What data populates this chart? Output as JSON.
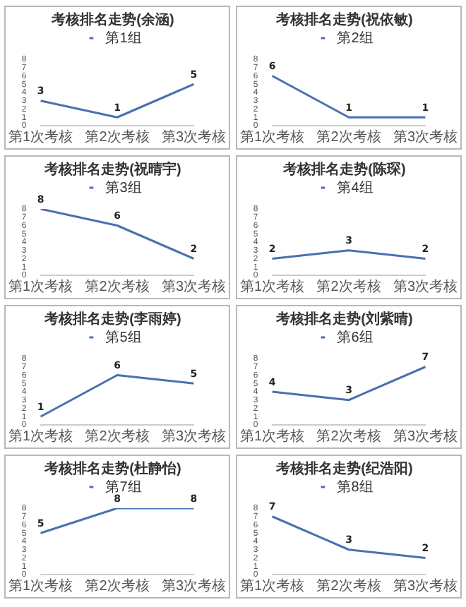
{
  "chart_data": [
    {
      "type": "line",
      "title": "考核排名走势(余涵)",
      "categories": [
        "第1次考核",
        "第2次考核",
        "第3次考核"
      ],
      "series": [
        {
          "name": "第1组",
          "color": "#4a70b0",
          "values": [
            3,
            1,
            5
          ]
        }
      ],
      "ylim": [
        0,
        8
      ],
      "yticks": [
        0,
        1,
        2,
        3,
        4,
        5,
        6,
        7,
        8
      ],
      "data_labels": true,
      "legend": "top",
      "grid": false,
      "marker": "none"
    },
    {
      "type": "line",
      "title": "考核排名走势(祝依敏)",
      "categories": [
        "第1次考核",
        "第2次考核",
        "第3次考核"
      ],
      "series": [
        {
          "name": "第2组",
          "color": "#4a70b0",
          "values": [
            6,
            1,
            1
          ]
        }
      ],
      "ylim": [
        0,
        8
      ],
      "yticks": [
        0,
        1,
        2,
        3,
        4,
        5,
        6,
        7,
        8
      ],
      "data_labels": true,
      "legend": "top",
      "grid": false,
      "marker": "none"
    },
    {
      "type": "line",
      "title": "考核排名走势(祝晴宇)",
      "categories": [
        "第1次考核",
        "第2次考核",
        "第3次考核"
      ],
      "series": [
        {
          "name": "第3组",
          "color": "#4a70b0",
          "values": [
            8,
            6,
            2
          ]
        }
      ],
      "ylim": [
        0,
        8
      ],
      "yticks": [
        0,
        1,
        2,
        3,
        4,
        5,
        6,
        7,
        8
      ],
      "data_labels": true,
      "legend": "top",
      "grid": false,
      "marker": "none"
    },
    {
      "type": "line",
      "title": "考核排名走势(陈琛)",
      "categories": [
        "第1次考核",
        "第2次考核",
        "第3次考核"
      ],
      "series": [
        {
          "name": "第4组",
          "color": "#4a70b0",
          "values": [
            2,
            3,
            2
          ]
        }
      ],
      "ylim": [
        0,
        8
      ],
      "yticks": [
        0,
        1,
        2,
        3,
        4,
        5,
        6,
        7,
        8
      ],
      "data_labels": true,
      "legend": "top",
      "grid": false,
      "marker": "none"
    },
    {
      "type": "line",
      "title": "考核排名走势(李雨婷)",
      "categories": [
        "第1次考核",
        "第2次考核",
        "第3次考核"
      ],
      "series": [
        {
          "name": "第5组",
          "color": "#4a70b0",
          "values": [
            1,
            6,
            5
          ]
        }
      ],
      "ylim": [
        0,
        8
      ],
      "yticks": [
        0,
        1,
        2,
        3,
        4,
        5,
        6,
        7,
        8
      ],
      "data_labels": true,
      "legend": "top",
      "grid": false,
      "marker": "none"
    },
    {
      "type": "line",
      "title": "考核排名走势(刘紫晴)",
      "categories": [
        "第1次考核",
        "第2次考核",
        "第3次考核"
      ],
      "series": [
        {
          "name": "第6组",
          "color": "#4a70b0",
          "values": [
            4,
            3,
            7
          ]
        }
      ],
      "ylim": [
        0,
        8
      ],
      "yticks": [
        0,
        1,
        2,
        3,
        4,
        5,
        6,
        7,
        8
      ],
      "data_labels": true,
      "legend": "top",
      "grid": false,
      "marker": "none"
    },
    {
      "type": "line",
      "title": "考核排名走势(杜静怡)",
      "categories": [
        "第1次考核",
        "第2次考核",
        "第3次考核"
      ],
      "series": [
        {
          "name": "第7组",
          "color": "#4a70b0",
          "values": [
            5,
            8,
            8
          ]
        }
      ],
      "ylim": [
        0,
        8
      ],
      "yticks": [
        0,
        1,
        2,
        3,
        4,
        5,
        6,
        7,
        8
      ],
      "data_labels": true,
      "legend": "top",
      "grid": false,
      "marker": "none"
    },
    {
      "type": "line",
      "title": "考核排名走势(纪浩阳)",
      "categories": [
        "第1次考核",
        "第2次考核",
        "第3次考核"
      ],
      "series": [
        {
          "name": "第8组",
          "color": "#4a70b0",
          "values": [
            7,
            3,
            2
          ]
        }
      ],
      "ylim": [
        0,
        8
      ],
      "yticks": [
        0,
        1,
        2,
        3,
        4,
        5,
        6,
        7,
        8
      ],
      "data_labels": true,
      "legend": "top",
      "grid": false,
      "marker": "none"
    }
  ]
}
